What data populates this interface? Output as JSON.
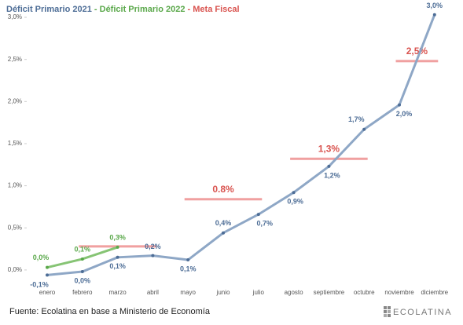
{
  "chart_data": {
    "type": "line",
    "categories": [
      "enero",
      "febrero",
      "marzo",
      "abril",
      "mayo",
      "junio",
      "julio",
      "agosto",
      "septiembre",
      "octubre",
      "noviembre",
      "diciembre"
    ],
    "series": [
      {
        "name": "Déficit Primario 2021",
        "color": "#8ea7c6",
        "label_color": "#4d6d96",
        "values": [
          -0.06,
          -0.02,
          0.15,
          0.17,
          0.12,
          0.44,
          0.66,
          0.92,
          1.23,
          1.67,
          1.96,
          3.03
        ],
        "value_labels": [
          "-0,1%",
          "0,0%",
          "0,1%",
          "0,2%",
          "0,1%",
          "0,4%",
          "0,7%",
          "0,9%",
          "1,2%",
          "1,7%",
          "2,0%",
          "3,0%"
        ]
      },
      {
        "name": "Déficit Primario 2022",
        "color": "#86c474",
        "label_color": "#5aa84a",
        "values": [
          0.03,
          0.13,
          0.27,
          null,
          null,
          null,
          null,
          null,
          null,
          null,
          null,
          null
        ],
        "value_labels": [
          "0,0%",
          "0,1%",
          "0,3%",
          null,
          null,
          null,
          null,
          null,
          null,
          null,
          null,
          null
        ]
      }
    ],
    "targets": {
      "name": "Meta Fiscal",
      "color": "#f0a0a0",
      "label_color": "#d9534f",
      "items": [
        {
          "from": "febrero",
          "to": "abril",
          "value": 0.28
        },
        {
          "from": "mayo",
          "to": "julio",
          "value": 0.84,
          "label": "0.8%"
        },
        {
          "from": "agosto",
          "to": "octubre",
          "value": 1.32,
          "label": "1,3%"
        },
        {
          "from": "noviembre",
          "to": "diciembre",
          "value": 2.48,
          "label": "2,5%"
        }
      ]
    },
    "legend_separator": " - ",
    "ylim": [
      -0.15,
      3.1
    ],
    "yticks": [
      {
        "value": 0,
        "label": "0,0%"
      },
      {
        "value": 0.5,
        "label": "0,5%"
      },
      {
        "value": 1,
        "label": "1,0%"
      },
      {
        "value": 1.5,
        "label": "1,5%"
      },
      {
        "value": 2,
        "label": "2,0%"
      },
      {
        "value": 2.5,
        "label": "2,5%"
      },
      {
        "value": 3,
        "label": "3,0%"
      }
    ],
    "grid": false,
    "source": "Fuente: Ecolatina en base a Ministerio de Economía",
    "brand": "ECOLATINA"
  }
}
